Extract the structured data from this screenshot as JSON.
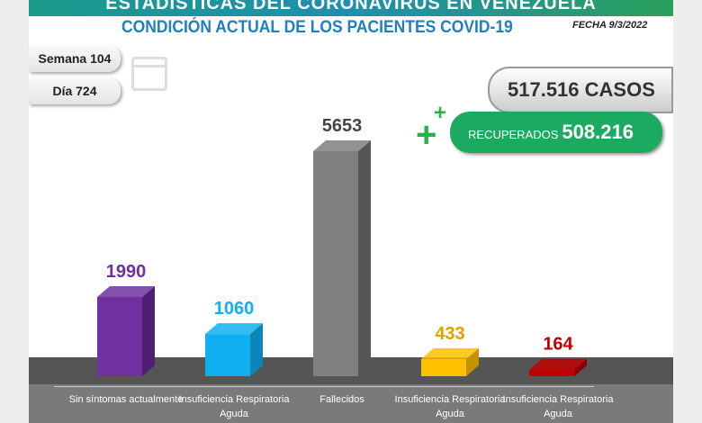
{
  "header": {
    "banner_title": "ESTADÍSTICAS DEL CORONAVIRUS EN VENEZUELA",
    "subtitle": "CONDICIÓN ACTUAL DE LOS PACIENTES COVID-19",
    "fecha": "FECHA 9/3/2022"
  },
  "semana": "Semana 104",
  "dia": "Día 724",
  "casos": "517.516 CASOS",
  "recuperados": {
    "label": "RECUPERADOS",
    "value": "508.216"
  },
  "chart_data": {
    "type": "bar",
    "title": "CONDICIÓN ACTUAL DE LOS PACIENTES COVID-19",
    "categories": [
      "Sin síntomas actualmente",
      "Insuficiencia Respiratoria Aguda",
      "Fallecidos",
      "Insuficiencia Respiratoria Aguda",
      "Insuficiencia Respiratoria Aguda"
    ],
    "values": [
      1990,
      1060,
      5653,
      433,
      164
    ],
    "labels": [
      "1990",
      "1060",
      "5653",
      "433",
      "164"
    ],
    "colors": [
      "#7030a0",
      "#10b0f0",
      "#7f7f7f",
      "#ffc000",
      "#c00000"
    ],
    "side_colors": [
      "#4e1f72",
      "#0a86b8",
      "#555555",
      "#c59300",
      "#8a0000"
    ],
    "label_colors": [
      "#7030a0",
      "#10b0f0",
      "#444444",
      "#e0a000",
      "#c00000"
    ],
    "ylim": [
      0,
      5653
    ]
  }
}
